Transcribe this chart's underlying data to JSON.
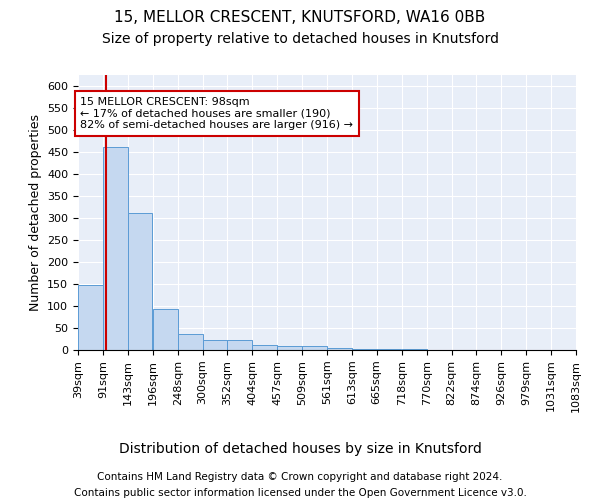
{
  "title1": "15, MELLOR CRESCENT, KNUTSFORD, WA16 0BB",
  "title2": "Size of property relative to detached houses in Knutsford",
  "xlabel": "Distribution of detached houses by size in Knutsford",
  "ylabel": "Number of detached properties",
  "footnote1": "Contains HM Land Registry data © Crown copyright and database right 2024.",
  "footnote2": "Contains public sector information licensed under the Open Government Licence v3.0.",
  "bin_labels": [
    "39sqm",
    "91sqm",
    "143sqm",
    "196sqm",
    "248sqm",
    "300sqm",
    "352sqm",
    "404sqm",
    "457sqm",
    "509sqm",
    "561sqm",
    "613sqm",
    "665sqm",
    "718sqm",
    "770sqm",
    "822sqm",
    "874sqm",
    "926sqm",
    "979sqm",
    "1031sqm",
    "1083sqm"
  ],
  "bar_values": [
    148,
    462,
    312,
    93,
    37,
    23,
    22,
    12,
    10,
    8,
    4,
    3,
    2,
    2,
    1,
    1,
    1,
    0,
    0,
    0
  ],
  "bin_edges": [
    39,
    91,
    143,
    196,
    248,
    300,
    352,
    404,
    457,
    509,
    561,
    613,
    665,
    718,
    770,
    822,
    874,
    926,
    979,
    1031,
    1083
  ],
  "bar_color": "#c5d8f0",
  "bar_edgecolor": "#5b9bd5",
  "property_size": 98,
  "vline_color": "#cc0000",
  "annotation_text": "15 MELLOR CRESCENT: 98sqm\n← 17% of detached houses are smaller (190)\n82% of semi-detached houses are larger (916) →",
  "annotation_box_color": "#cc0000",
  "ylim": [
    0,
    625
  ],
  "yticks": [
    0,
    50,
    100,
    150,
    200,
    250,
    300,
    350,
    400,
    450,
    500,
    550,
    600
  ],
  "background_color": "#e8eef8",
  "grid_color": "#ffffff",
  "title1_fontsize": 11,
  "title2_fontsize": 10,
  "xlabel_fontsize": 10,
  "ylabel_fontsize": 9,
  "tick_fontsize": 8,
  "annotation_fontsize": 8,
  "footnote_fontsize": 7.5
}
